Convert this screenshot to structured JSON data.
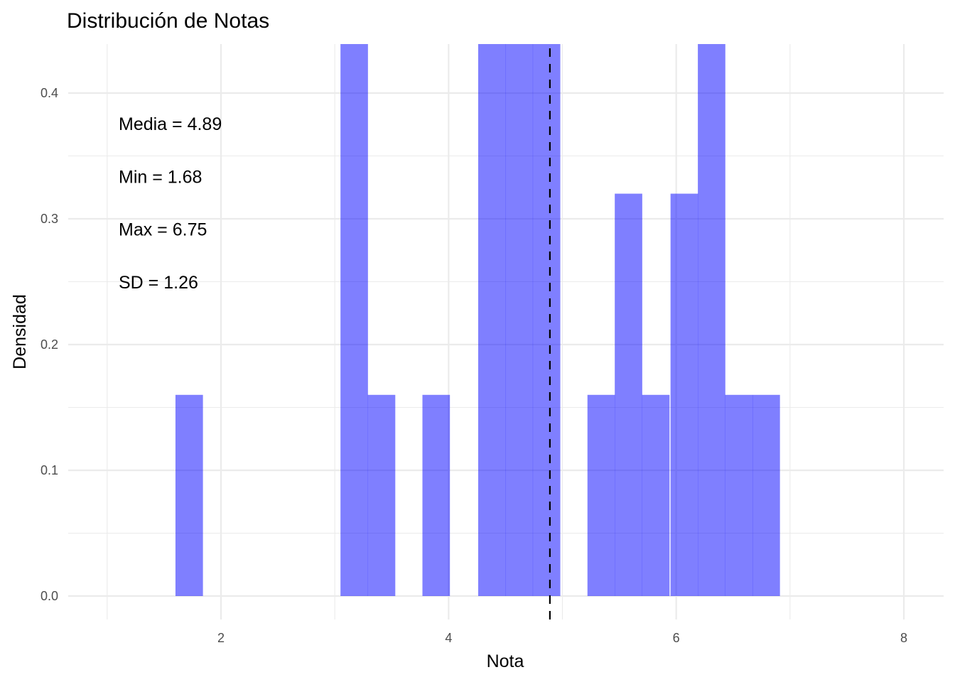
{
  "chart_data": {
    "type": "bar",
    "subtype": "histogram",
    "title": "Distribución de Notas",
    "xlabel": "Nota",
    "ylabel": "Densidad",
    "xlim": [
      0.85,
      8.2
    ],
    "ylim": [
      -0.02,
      0.44
    ],
    "x_ticks": [
      2,
      4,
      6,
      8
    ],
    "x_tick_labels": [
      "2",
      "4",
      "6",
      "8"
    ],
    "y_ticks": [
      0.0,
      0.1,
      0.2,
      0.3,
      0.4
    ],
    "y_tick_labels": [
      "0.0",
      "0.1",
      "0.2",
      "0.3",
      "0.4"
    ],
    "grid": true,
    "bin_width": 0.2415,
    "bins": [
      {
        "x0": 1.6,
        "density": 0.16
      },
      {
        "x0": 3.05,
        "density": 0.48
      },
      {
        "x0": 3.29,
        "density": 0.16
      },
      {
        "x0": 3.77,
        "density": 0.16
      },
      {
        "x0": 4.26,
        "density": 0.8
      },
      {
        "x0": 4.5,
        "density": 0.8
      },
      {
        "x0": 4.74,
        "density": 0.64
      },
      {
        "x0": 5.22,
        "density": 0.16
      },
      {
        "x0": 5.46,
        "density": 0.32
      },
      {
        "x0": 5.7,
        "density": 0.16
      },
      {
        "x0": 5.95,
        "density": 0.32
      },
      {
        "x0": 6.19,
        "density": 0.48
      },
      {
        "x0": 6.43,
        "density": 0.16
      },
      {
        "x0": 6.67,
        "density": 0.16
      }
    ],
    "bar_color": "#0000ff",
    "bar_alpha": 0.5,
    "mean_line": {
      "x": 4.89,
      "style": "dashed",
      "color": "#000000"
    },
    "annotations": [
      "Media = 4.89",
      "Min = 1.68",
      "Max = 6.75",
      "SD = 1.26"
    ],
    "legend": null
  }
}
